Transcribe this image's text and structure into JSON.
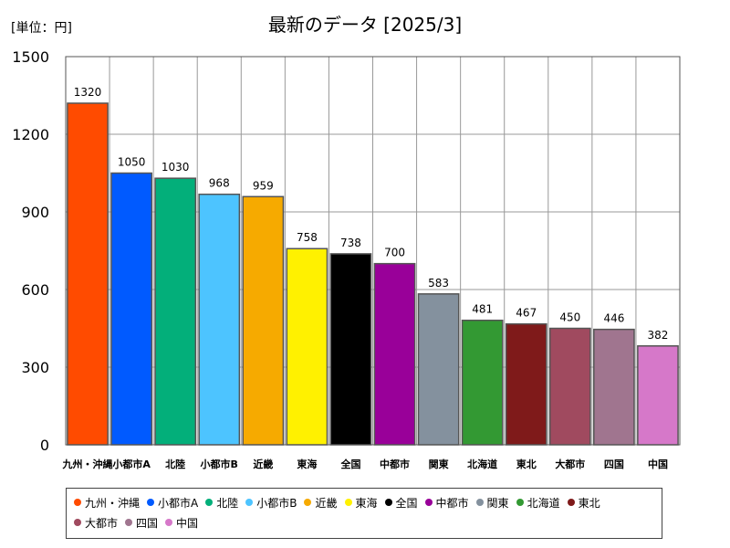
{
  "unit_label": "[単位：円]",
  "chart_data": {
    "type": "bar",
    "title": "最新のデータ [2025/3]",
    "xlabel": "",
    "ylabel": "",
    "ylim": [
      0,
      1500
    ],
    "yticks": [
      0,
      300,
      600,
      900,
      1200,
      1500
    ],
    "grid": true,
    "legend_position": "bottom",
    "categories": [
      "九州・沖縄",
      "小都市A",
      "北陸",
      "小都市B",
      "近畿",
      "東海",
      "全国",
      "中都市",
      "関東",
      "北海道",
      "東北",
      "大都市",
      "四国",
      "中国"
    ],
    "values": [
      1320,
      1050,
      1030,
      968,
      959,
      758,
      738,
      700,
      583,
      481,
      467,
      450,
      446,
      382
    ],
    "colors": [
      "#ff4b00",
      "#005aff",
      "#03af7a",
      "#4dc4ff",
      "#f6aa00",
      "#fff100",
      "#000000",
      "#990099",
      "#84919e",
      "#339933",
      "#7f1a1a",
      "#a04a5f",
      "#a0758f",
      "#d678c9"
    ]
  }
}
